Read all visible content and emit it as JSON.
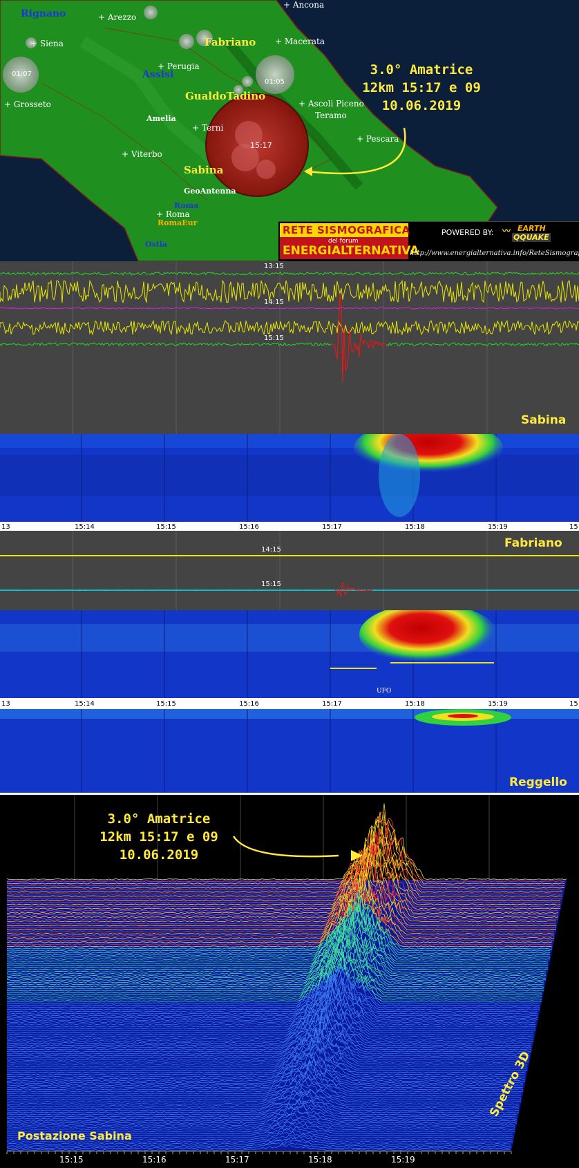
{
  "map": {
    "cities": [
      {
        "name": "Arezzo",
        "kind": "city"
      },
      {
        "name": "Siena",
        "kind": "city"
      },
      {
        "name": "Perugia",
        "kind": "city"
      },
      {
        "name": "Macerata",
        "kind": "city"
      },
      {
        "name": "Grosseto",
        "kind": "city"
      },
      {
        "name": "Ascoli Piceno",
        "kind": "city"
      },
      {
        "name": "Teramo",
        "kind": "city"
      },
      {
        "name": "Terni",
        "kind": "city"
      },
      {
        "name": "Viterbo",
        "kind": "city"
      },
      {
        "name": "Pescara",
        "kind": "city"
      },
      {
        "name": "Roma",
        "kind": "city"
      },
      {
        "name": "Ancona",
        "kind": "city"
      }
    ],
    "stations": {
      "rignano": "Rignano",
      "fabriano": "Fabriano",
      "assisi": "Assisi",
      "gualdotadino": "GualdoTadino",
      "amelia": "Amelia",
      "sabina": "Sabina",
      "geoantenna": "GeoAntenna",
      "roma": "Roma",
      "romaeur": "RomaEur",
      "ostia": "Ostia"
    },
    "quake_times": {
      "main": "15:17",
      "left": "01:07",
      "right": "01:05"
    },
    "event": {
      "line1": "3.0° Amatrice",
      "line2": "12km 15:17 e 09",
      "line3": "10.06.2019"
    },
    "logo": {
      "title": "RETE SISMOGRAFICA",
      "subtitle": "del forum",
      "name": "ENERGIALTERNATIVA",
      "powered": "POWERED BY:",
      "earth": "EARTH",
      "qquake": "QQUAKE",
      "url": "http://www.energialternativa.info/ReteSismografica"
    }
  },
  "sabina": {
    "station": "Sabina",
    "times": [
      "13:15",
      "14:15",
      "15:15"
    ]
  },
  "fabriano": {
    "station": "Fabriano",
    "times": [
      "14:15",
      "15:15"
    ],
    "ufo": "UFO"
  },
  "reggello": {
    "station": "Reggello"
  },
  "time_axis": [
    "13",
    "15:14",
    "15:15",
    "15:16",
    "15:17",
    "15:18",
    "15:19",
    "15"
  ],
  "spectro3d": {
    "event": {
      "line1": "3.0° Amatrice",
      "line2": "12km 15:17 e 09",
      "line3": "10.06.2019"
    },
    "station": "Postazione Sabina",
    "title": "Spettro 3D",
    "ticks": [
      "15:15",
      "15:16",
      "15:17",
      "15:18",
      "15:19"
    ]
  },
  "colors": {
    "label_yellow": "#ffea3c",
    "trace_yellow": "#e8e800",
    "trace_green": "#22dd22",
    "trace_magenta": "#e020e0",
    "trace_cyan": "#00ddee",
    "quake_red": "#ff1010",
    "spectro_blue": "#1030c8"
  }
}
